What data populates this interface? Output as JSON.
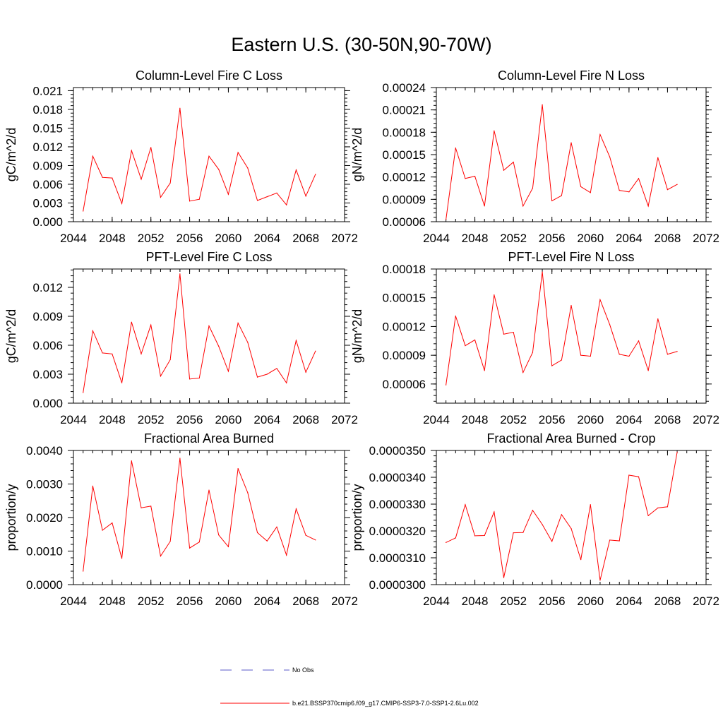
{
  "page": {
    "title": "Eastern U.S. (30-50N,90-70W)"
  },
  "chart_data": [
    {
      "type": "line",
      "title": "Column-Level Fire C Loss",
      "xlabel": "",
      "ylabel": "gC/m^2/d",
      "xlim": [
        2044,
        2072
      ],
      "ylim": [
        0,
        0.0215
      ],
      "xticks": [
        2044,
        2048,
        2052,
        2056,
        2060,
        2064,
        2068,
        2072
      ],
      "xtick_labels": [
        "2044",
        "2048",
        "2052",
        "2056",
        "2060",
        "2064",
        "2068",
        "2072"
      ],
      "yticks": [
        0,
        0.003,
        0.006,
        0.009,
        0.012,
        0.015,
        0.018,
        0.021
      ],
      "ytick_labels": [
        "0.000",
        "0.003",
        "0.006",
        "0.009",
        "0.012",
        "0.015",
        "0.018",
        "0.021"
      ],
      "series": [
        {
          "color": "#ff0000",
          "x": [
            2045,
            2046,
            2047,
            2048,
            2049,
            2050,
            2051,
            2052,
            2053,
            2054,
            2055,
            2056,
            2057,
            2058,
            2059,
            2060,
            2061,
            2062,
            2063,
            2064,
            2065,
            2066,
            2067,
            2068,
            2069
          ],
          "values": [
            0.0017,
            0.0105,
            0.0071,
            0.007,
            0.0029,
            0.0114,
            0.0068,
            0.0119,
            0.0039,
            0.0062,
            0.0182,
            0.0033,
            0.0036,
            0.0105,
            0.0084,
            0.0044,
            0.0111,
            0.0086,
            0.0034,
            0.004,
            0.0046,
            0.0027,
            0.0083,
            0.0041,
            0.0076
          ]
        }
      ]
    },
    {
      "type": "line",
      "title": "Column-Level Fire N Loss",
      "xlabel": "",
      "ylabel": "gN/m^2/d",
      "xlim": [
        2044,
        2072
      ],
      "ylim": [
        6e-05,
        0.00024
      ],
      "xticks": [
        2044,
        2048,
        2052,
        2056,
        2060,
        2064,
        2068,
        2072
      ],
      "xtick_labels": [
        "2044",
        "2048",
        "2052",
        "2056",
        "2060",
        "2064",
        "2068",
        "2072"
      ],
      "yticks": [
        6e-05,
        9e-05,
        0.00012,
        0.00015,
        0.00018,
        0.00021,
        0.00024
      ],
      "ytick_labels": [
        "0.00006",
        "0.00009",
        "0.00012",
        "0.00015",
        "0.00018",
        "0.00021",
        "0.00024"
      ],
      "series": [
        {
          "color": "#ff0000",
          "x": [
            2045,
            2046,
            2047,
            2048,
            2049,
            2050,
            2051,
            2052,
            2053,
            2054,
            2055,
            2056,
            2057,
            2058,
            2059,
            2060,
            2061,
            2062,
            2063,
            2064,
            2065,
            2066,
            2067,
            2068,
            2069
          ],
          "values": [
            6.3e-05,
            0.000159,
            0.000118,
            0.000121,
            8.1e-05,
            0.000182,
            0.000129,
            0.00014,
            8.1e-05,
            0.000105,
            0.000217,
            8.8e-05,
            9.5e-05,
            0.000166,
            0.000107,
            9.9e-05,
            0.000177,
            0.000147,
            0.000102,
            0.0001,
            0.000118,
            8.1e-05,
            0.000146,
            0.000103,
            0.00011
          ]
        }
      ]
    },
    {
      "type": "line",
      "title": "PFT-Level Fire C Loss",
      "xlabel": "",
      "ylabel": "gC/m^2/d",
      "xlim": [
        2044,
        2072
      ],
      "ylim": [
        0,
        0.0139
      ],
      "xticks": [
        2044,
        2048,
        2052,
        2056,
        2060,
        2064,
        2068,
        2072
      ],
      "xtick_labels": [
        "2044",
        "2048",
        "2052",
        "2056",
        "2060",
        "2064",
        "2068",
        "2072"
      ],
      "yticks": [
        0,
        0.003,
        0.006,
        0.009,
        0.012
      ],
      "ytick_labels": [
        "0.000",
        "0.003",
        "0.006",
        "0.009",
        "0.012"
      ],
      "series": [
        {
          "color": "#ff0000",
          "x": [
            2045,
            2046,
            2047,
            2048,
            2049,
            2050,
            2051,
            2052,
            2053,
            2054,
            2055,
            2056,
            2057,
            2058,
            2059,
            2060,
            2061,
            2062,
            2063,
            2064,
            2065,
            2066,
            2067,
            2068,
            2069
          ],
          "values": [
            0.0011,
            0.0075,
            0.0052,
            0.0051,
            0.0021,
            0.0084,
            0.0051,
            0.0081,
            0.0028,
            0.0045,
            0.0134,
            0.0025,
            0.0026,
            0.008,
            0.0059,
            0.0033,
            0.0083,
            0.0063,
            0.0027,
            0.003,
            0.0036,
            0.0021,
            0.0065,
            0.0032,
            0.0054
          ]
        }
      ]
    },
    {
      "type": "line",
      "title": "PFT-Level Fire N Loss",
      "xlabel": "",
      "ylabel": "gN/m^2/d",
      "xlim": [
        2044,
        2072
      ],
      "ylim": [
        4e-05,
        0.00018
      ],
      "xticks": [
        2044,
        2048,
        2052,
        2056,
        2060,
        2064,
        2068,
        2072
      ],
      "xtick_labels": [
        "2044",
        "2048",
        "2052",
        "2056",
        "2060",
        "2064",
        "2068",
        "2072"
      ],
      "yticks": [
        6e-05,
        9e-05,
        0.00012,
        0.00015,
        0.00018
      ],
      "ytick_labels": [
        "0.00006",
        "0.00009",
        "0.00012",
        "0.00015",
        "0.00018"
      ],
      "series": [
        {
          "color": "#ff0000",
          "x": [
            2045,
            2046,
            2047,
            2048,
            2049,
            2050,
            2051,
            2052,
            2053,
            2054,
            2055,
            2056,
            2057,
            2058,
            2059,
            2060,
            2061,
            2062,
            2063,
            2064,
            2065,
            2066,
            2067,
            2068,
            2069
          ],
          "values": [
            5.9e-05,
            0.000131,
            0.0001,
            0.000106,
            7.4e-05,
            0.000153,
            0.000112,
            0.000114,
            7.2e-05,
            9.3e-05,
            0.000177,
            7.9e-05,
            8.5e-05,
            0.000142,
            9e-05,
            8.9e-05,
            0.000148,
            0.000122,
            9.1e-05,
            8.9e-05,
            0.000105,
            7.4e-05,
            0.000128,
            9.1e-05,
            9.4e-05
          ]
        }
      ]
    },
    {
      "type": "line",
      "title": "Fractional Area Burned",
      "xlabel": "",
      "ylabel": "proportion/y",
      "xlim": [
        2044,
        2072
      ],
      "ylim": [
        0,
        0.004
      ],
      "xticks": [
        2044,
        2048,
        2052,
        2056,
        2060,
        2064,
        2068,
        2072
      ],
      "xtick_labels": [
        "2044",
        "2048",
        "2052",
        "2056",
        "2060",
        "2064",
        "2068",
        "2072"
      ],
      "yticks": [
        0,
        0.001,
        0.002,
        0.003,
        0.004
      ],
      "ytick_labels": [
        "0.0000",
        "0.0010",
        "0.0020",
        "0.0030",
        "0.0040"
      ],
      "series": [
        {
          "color": "#ff0000",
          "x": [
            2045,
            2046,
            2047,
            2048,
            2049,
            2050,
            2051,
            2052,
            2053,
            2054,
            2055,
            2056,
            2057,
            2058,
            2059,
            2060,
            2061,
            2062,
            2063,
            2064,
            2065,
            2066,
            2067,
            2068,
            2069
          ],
          "values": [
            0.0004,
            0.00294,
            0.00162,
            0.00184,
            0.00078,
            0.00369,
            0.00229,
            0.00234,
            0.00085,
            0.00129,
            0.00377,
            0.00109,
            0.00127,
            0.00282,
            0.00148,
            0.00113,
            0.00346,
            0.00274,
            0.00155,
            0.0013,
            0.00172,
            0.00088,
            0.00226,
            0.00147,
            0.00133
          ]
        }
      ]
    },
    {
      "type": "line",
      "title": "Fractional Area Burned - Crop",
      "xlabel": "",
      "ylabel": "proportion/y",
      "xlim": [
        2044,
        2072
      ],
      "ylim": [
        3e-05,
        3.5e-05
      ],
      "xticks": [
        2044,
        2048,
        2052,
        2056,
        2060,
        2064,
        2068,
        2072
      ],
      "xtick_labels": [
        "2044",
        "2048",
        "2052",
        "2056",
        "2060",
        "2064",
        "2068",
        "2072"
      ],
      "yticks": [
        3e-05,
        3.1e-05,
        3.2e-05,
        3.3e-05,
        3.4e-05,
        3.5e-05
      ],
      "ytick_labels": [
        "0.0000300",
        "0.0000310",
        "0.0000320",
        "0.0000330",
        "0.0000340",
        "0.0000350"
      ],
      "series": [
        {
          "color": "#ff0000",
          "x": [
            2045,
            2046,
            2047,
            2048,
            2049,
            2050,
            2051,
            2052,
            2053,
            2054,
            2055,
            2056,
            2057,
            2058,
            2059,
            2060,
            2061,
            2062,
            2063,
            2064,
            2065,
            2066,
            2067,
            2068,
            2069
          ],
          "values": [
            3.157e-05,
            3.174e-05,
            3.298e-05,
            3.182e-05,
            3.183e-05,
            3.271e-05,
            3.026e-05,
            3.193e-05,
            3.194e-05,
            3.277e-05,
            3.224e-05,
            3.161e-05,
            3.261e-05,
            3.209e-05,
            3.093e-05,
            3.298e-05,
            3.016e-05,
            3.166e-05,
            3.163e-05,
            3.408e-05,
            3.402e-05,
            3.257e-05,
            3.286e-05,
            3.29e-05,
            3.494e-05
          ]
        }
      ]
    }
  ],
  "legend": {
    "items": [
      {
        "label": "No Obs",
        "color": "#5a5ac8",
        "style": "dashed"
      },
      {
        "label": "b.e21.BSSP370cmip6.f09_g17.CMIP6-SSP3-7.0-SSP1-2.6Lu.002",
        "color": "#ff0000",
        "style": "solid"
      }
    ]
  }
}
